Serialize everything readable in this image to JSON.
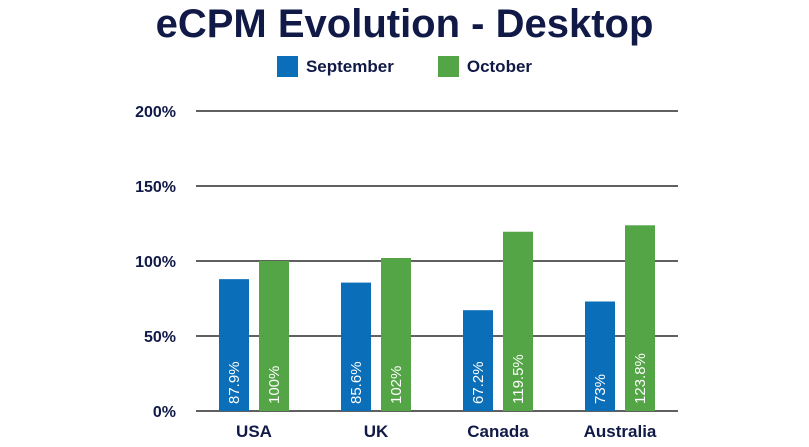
{
  "chart_data": {
    "type": "bar",
    "title": "eCPM Evolution - Desktop",
    "categories": [
      "USA",
      "UK",
      "Canada",
      "Australia"
    ],
    "series": [
      {
        "name": "September",
        "color": "#0a6eb8",
        "values": [
          87.9,
          85.6,
          67.2,
          73
        ],
        "labels": [
          "87.9%",
          "85.6%",
          "67.2%",
          "73%"
        ]
      },
      {
        "name": "October",
        "color": "#54a546",
        "values": [
          100,
          102,
          119.5,
          123.8
        ],
        "labels": [
          "100%",
          "102%",
          "119.5%",
          "123.8%"
        ]
      }
    ],
    "ylim": [
      0,
      200
    ],
    "yticks": [
      0,
      50,
      100,
      150,
      200
    ],
    "ytick_labels": [
      "0%",
      "50%",
      "100%",
      "150%",
      "200%"
    ],
    "grid": true,
    "legend_position": "top-center"
  }
}
